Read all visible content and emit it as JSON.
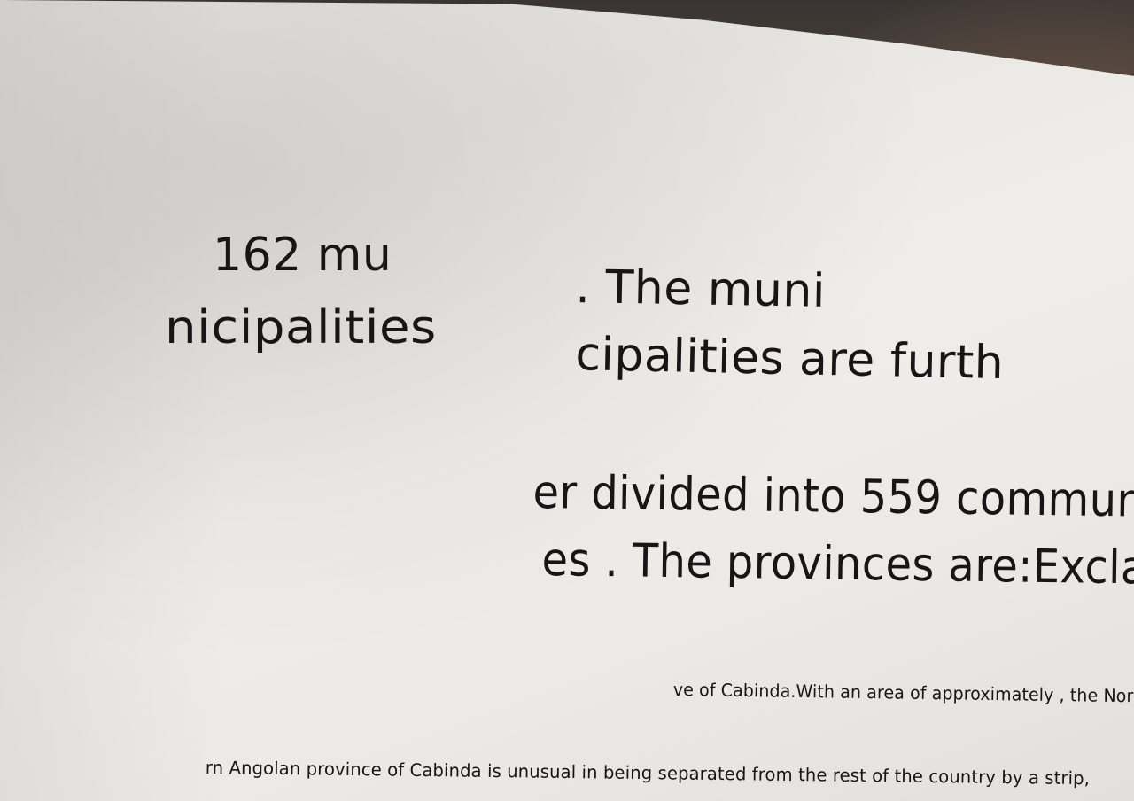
{
  "text": {
    "col1_line1": "162 mu",
    "col1_line2": "nicipalities",
    "col2_line1": ". The muni",
    "col2_line2": "cipalities are furth",
    "col3_line1": "er divided into 559 commun",
    "col3_line2": "es . The provinces are:Excla",
    "col4_line1": "ve of Cabinda.With an area of approximately , the Northe",
    "col4_line2": "rn Angolan province of Cabinda is unusual in being separated from the rest of the country by a strip,"
  },
  "colors": {
    "paper": "#ecebe7",
    "ink": "#161616",
    "background": "#4a4440"
  }
}
